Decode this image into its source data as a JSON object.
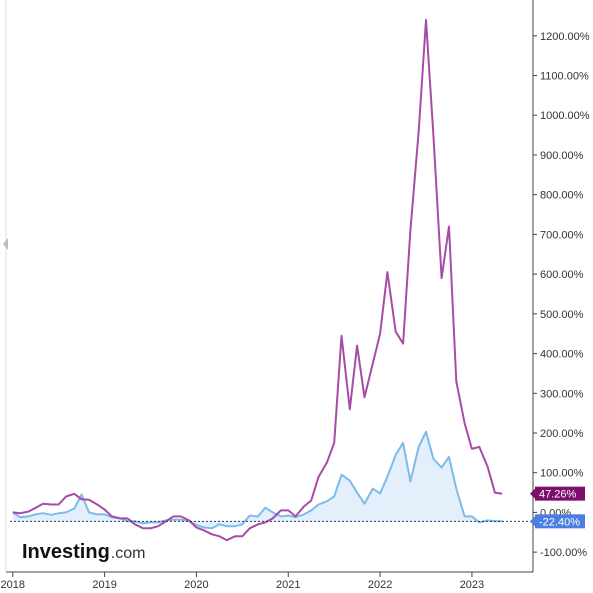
{
  "logo": {
    "main": "Investing",
    "suffix": ".com"
  },
  "colors": {
    "series_a": "#a64ca6",
    "series_b": "#7dbbe9",
    "series_b_fill": "#e3f0fb",
    "badge_a": "#7d0e6e",
    "badge_b": "#4a7fe0",
    "axis": "#444444",
    "baseline": "#1a3a6a"
  },
  "chart_data": {
    "type": "line",
    "title": "",
    "xlabel": "",
    "ylabel": "",
    "ylim": [
      -150,
      1270
    ],
    "yticks": [
      -100,
      0,
      100,
      200,
      300,
      400,
      500,
      600,
      700,
      800,
      900,
      1000,
      1100,
      1200
    ],
    "ytick_labels": [
      "-100.00%",
      "0.00%",
      "100.00%",
      "200.00%",
      "300.00%",
      "400.00%",
      "500.00%",
      "600.00%",
      "700.00%",
      "800.00%",
      "900.00%",
      "1000.00%",
      "1100.00%",
      "1200.00%"
    ],
    "xlim": [
      2017.97,
      2023.85
    ],
    "xticks": [
      2018.0,
      2019.0,
      2020.0,
      2021.0,
      2022.0,
      2023.0
    ],
    "xtick_labels": [
      "2018",
      "2019",
      "2020",
      "2021",
      "2022",
      "2023"
    ],
    "grid": false,
    "baseline_value": -22.4,
    "series": [
      {
        "name": "",
        "color": "#a64ca6",
        "fill": false,
        "last_label": "47.26%",
        "last_value": 47.26,
        "points": [
          [
            2018.0,
            0
          ],
          [
            2018.08,
            -2
          ],
          [
            2018.17,
            2
          ],
          [
            2018.25,
            12
          ],
          [
            2018.33,
            22
          ],
          [
            2018.42,
            20
          ],
          [
            2018.5,
            20
          ],
          [
            2018.58,
            40
          ],
          [
            2018.67,
            47
          ],
          [
            2018.75,
            33
          ],
          [
            2018.83,
            32
          ],
          [
            2018.92,
            20
          ],
          [
            2019.0,
            7
          ],
          [
            2019.08,
            -10
          ],
          [
            2019.17,
            -15
          ],
          [
            2019.25,
            -15
          ],
          [
            2019.33,
            -30
          ],
          [
            2019.42,
            -40
          ],
          [
            2019.5,
            -40
          ],
          [
            2019.58,
            -35
          ],
          [
            2019.67,
            -22
          ],
          [
            2019.75,
            -10
          ],
          [
            2019.83,
            -10
          ],
          [
            2019.92,
            -20
          ],
          [
            2020.0,
            -38
          ],
          [
            2020.08,
            -45
          ],
          [
            2020.17,
            -55
          ],
          [
            2020.25,
            -60
          ],
          [
            2020.33,
            -70
          ],
          [
            2020.42,
            -60
          ],
          [
            2020.5,
            -60
          ],
          [
            2020.58,
            -40
          ],
          [
            2020.67,
            -30
          ],
          [
            2020.75,
            -25
          ],
          [
            2020.83,
            -15
          ],
          [
            2020.92,
            5
          ],
          [
            2021.0,
            5
          ],
          [
            2021.08,
            -10
          ],
          [
            2021.17,
            15
          ],
          [
            2021.25,
            30
          ],
          [
            2021.33,
            90
          ],
          [
            2021.42,
            125
          ],
          [
            2021.5,
            175
          ],
          [
            2021.58,
            445
          ],
          [
            2021.67,
            260
          ],
          [
            2021.75,
            420
          ],
          [
            2021.83,
            290
          ],
          [
            2021.92,
            375
          ],
          [
            2022.0,
            450
          ],
          [
            2022.08,
            605
          ],
          [
            2022.17,
            455
          ],
          [
            2022.25,
            425
          ],
          [
            2022.33,
            710
          ],
          [
            2022.42,
            960
          ],
          [
            2022.5,
            1240
          ],
          [
            2022.58,
            950
          ],
          [
            2022.67,
            590
          ],
          [
            2022.75,
            720
          ],
          [
            2022.83,
            330
          ],
          [
            2022.92,
            225
          ],
          [
            2023.0,
            160
          ],
          [
            2023.08,
            165
          ],
          [
            2023.17,
            115
          ],
          [
            2023.25,
            50
          ],
          [
            2023.33,
            47.26
          ]
        ]
      },
      {
        "name": "",
        "color": "#7dbbe9",
        "fill": true,
        "last_label": "-22.40%",
        "last_value": -22.4,
        "points": [
          [
            2018.0,
            0
          ],
          [
            2018.08,
            -12
          ],
          [
            2018.17,
            -10
          ],
          [
            2018.25,
            -5
          ],
          [
            2018.33,
            -2
          ],
          [
            2018.42,
            -6
          ],
          [
            2018.5,
            -2
          ],
          [
            2018.58,
            0
          ],
          [
            2018.67,
            10
          ],
          [
            2018.75,
            45
          ],
          [
            2018.83,
            0
          ],
          [
            2018.92,
            -5
          ],
          [
            2019.0,
            -5
          ],
          [
            2019.08,
            -12
          ],
          [
            2019.17,
            -15
          ],
          [
            2019.25,
            -22
          ],
          [
            2019.33,
            -22
          ],
          [
            2019.42,
            -28
          ],
          [
            2019.5,
            -25
          ],
          [
            2019.58,
            -25
          ],
          [
            2019.67,
            -20
          ],
          [
            2019.75,
            -18
          ],
          [
            2019.83,
            -18
          ],
          [
            2019.92,
            -22
          ],
          [
            2020.0,
            -32
          ],
          [
            2020.08,
            -38
          ],
          [
            2020.17,
            -40
          ],
          [
            2020.25,
            -30
          ],
          [
            2020.33,
            -35
          ],
          [
            2020.42,
            -35
          ],
          [
            2020.5,
            -30
          ],
          [
            2020.58,
            -8
          ],
          [
            2020.67,
            -10
          ],
          [
            2020.75,
            12
          ],
          [
            2020.83,
            0
          ],
          [
            2020.92,
            -10
          ],
          [
            2021.0,
            -8
          ],
          [
            2021.08,
            -12
          ],
          [
            2021.17,
            -5
          ],
          [
            2021.25,
            5
          ],
          [
            2021.33,
            20
          ],
          [
            2021.42,
            28
          ],
          [
            2021.5,
            40
          ],
          [
            2021.58,
            95
          ],
          [
            2021.67,
            80
          ],
          [
            2021.75,
            50
          ],
          [
            2021.83,
            22
          ],
          [
            2021.92,
            60
          ],
          [
            2022.0,
            48
          ],
          [
            2022.08,
            90
          ],
          [
            2022.17,
            145
          ],
          [
            2022.25,
            175
          ],
          [
            2022.33,
            78
          ],
          [
            2022.42,
            165
          ],
          [
            2022.5,
            203
          ],
          [
            2022.58,
            135
          ],
          [
            2022.67,
            113
          ],
          [
            2022.75,
            140
          ],
          [
            2022.83,
            60
          ],
          [
            2022.92,
            -10
          ],
          [
            2023.0,
            -10
          ],
          [
            2023.08,
            -25
          ],
          [
            2023.17,
            -20
          ],
          [
            2023.25,
            -22
          ],
          [
            2023.33,
            -22.4
          ]
        ]
      }
    ]
  }
}
